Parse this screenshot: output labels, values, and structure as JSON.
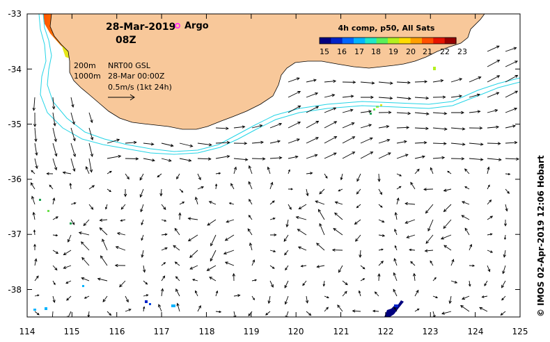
{
  "map": {
    "date": "28-Mar-2019",
    "time": "08Z",
    "argo_label": "Argo",
    "isobaths": [
      "200m",
      "1000m"
    ],
    "product": "NRT00 GSL",
    "product_time": "28-Mar 00:00Z",
    "vector_scale": "0.5m/s (1kt 24h)",
    "credit": "© IMOS 02-Apr-2019 12:06 Hobart",
    "lon_range": [
      114,
      125
    ],
    "lat_range": [
      -38.5,
      -33
    ]
  },
  "axes": {
    "x_ticks": [
      "114",
      "115",
      "116",
      "117",
      "118",
      "119",
      "120",
      "121",
      "122",
      "123",
      "124",
      "125"
    ],
    "y_ticks": [
      "-33",
      "-34",
      "-35",
      "-36",
      "-37",
      "-38"
    ]
  },
  "colorbar": {
    "title": "4h comp, p50, All Sats",
    "labels": [
      "15",
      "16",
      "17",
      "18",
      "19",
      "20",
      "21",
      "22",
      "23"
    ],
    "colors": [
      "#00007f",
      "#0022c8",
      "#0066ff",
      "#00b4ff",
      "#1ee8c8",
      "#5af05a",
      "#b4f01e",
      "#ffdc00",
      "#ffa000",
      "#ff5000",
      "#e61400",
      "#960000"
    ]
  },
  "colors": {
    "land": "#f8c89a",
    "isobath": "#22d4e6",
    "argo": "#ff22ff"
  }
}
